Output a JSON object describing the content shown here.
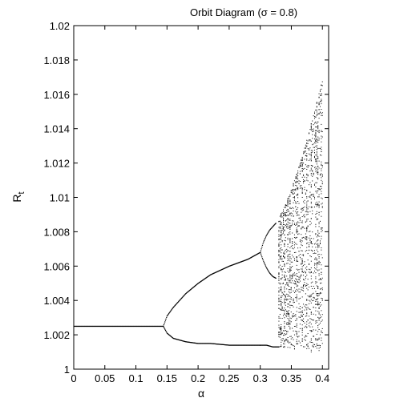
{
  "chart_data": {
    "type": "scatter",
    "title": "Orbit Diagram (σ = 0.8)",
    "xlabel": "α",
    "ylabel_main": "R",
    "ylabel_sub": "t",
    "xlim": [
      0,
      0.41
    ],
    "ylim": [
      1.0,
      1.02
    ],
    "xticks": [
      0,
      0.05,
      0.1,
      0.15,
      0.2,
      0.25,
      0.3,
      0.35,
      0.4
    ],
    "xtick_labels": [
      "0",
      "0.05",
      "0.1",
      "0.15",
      "0.2",
      "0.25",
      "0.3",
      "0.35",
      "0.4"
    ],
    "yticks": [
      1.0,
      1.002,
      1.004,
      1.006,
      1.008,
      1.01,
      1.012,
      1.014,
      1.016,
      1.018,
      1.02
    ],
    "ytick_labels": [
      "1",
      "1.002",
      "1.004",
      "1.006",
      "1.008",
      "1.01",
      "1.012",
      "1.014",
      "1.016",
      "1.018",
      "1.02"
    ],
    "grid": false,
    "marker_color": "#000000",
    "series": [
      {
        "x": [
          0.0,
          0.02,
          0.04,
          0.06,
          0.08,
          0.1,
          0.12,
          0.144
        ],
        "y": [
          1.0025,
          1.0025,
          1.0025,
          1.0025,
          1.0025,
          1.0025,
          1.0025,
          1.0025
        ]
      },
      {
        "x": [
          0.144,
          0.15,
          0.16,
          0.18,
          0.2,
          0.22,
          0.25,
          0.28,
          0.3
        ],
        "y": [
          1.0025,
          1.0031,
          1.0036,
          1.0044,
          1.005,
          1.0055,
          1.006,
          1.0064,
          1.0068
        ]
      },
      {
        "x": [
          0.144,
          0.15,
          0.16,
          0.18,
          0.2,
          0.22,
          0.25,
          0.28,
          0.3
        ],
        "y": [
          1.0025,
          1.0021,
          1.0018,
          1.0016,
          1.0015,
          1.0015,
          1.0014,
          1.0014,
          1.0014
        ]
      },
      {
        "x": [
          0.3,
          0.305,
          0.31,
          0.315,
          0.32,
          0.325
        ],
        "y": [
          1.0068,
          1.0074,
          1.0078,
          1.0081,
          1.0083,
          1.0085
        ]
      },
      {
        "x": [
          0.3,
          0.305,
          0.31,
          0.315,
          0.32,
          0.325
        ],
        "y": [
          1.0068,
          1.0063,
          1.0059,
          1.0056,
          1.0054,
          1.0053
        ]
      },
      {
        "x": [
          0.3,
          0.31,
          0.32,
          0.33
        ],
        "y": [
          1.0014,
          1.0014,
          1.0013,
          1.0013
        ]
      },
      {
        "x": [
          0.33,
          0.34,
          0.35,
          0.36,
          0.37,
          0.38,
          0.39,
          0.4
        ],
        "y_upper": [
          1.0088,
          1.0095,
          1.0105,
          1.0115,
          1.0127,
          1.014,
          1.0154,
          1.0168
        ],
        "y_lower": [
          1.0013,
          1.0012,
          1.0012,
          1.0011,
          1.0011,
          1.001,
          1.001,
          1.001
        ],
        "fill": "chaotic band"
      }
    ]
  }
}
